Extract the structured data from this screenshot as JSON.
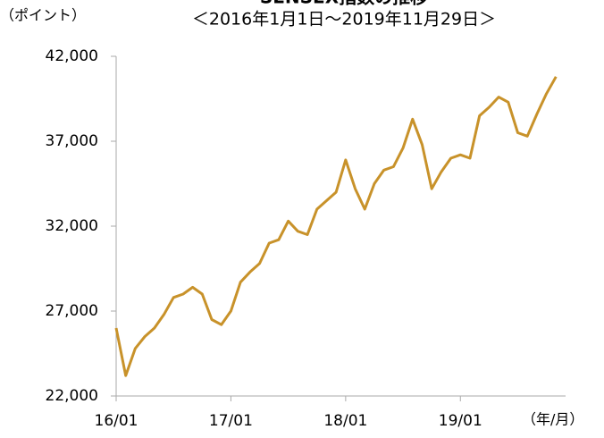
{
  "chart_data": {
    "type": "line",
    "title": "SENSEX指数の推移",
    "subtitle": "＜2016年1月1日～2019年11月29日＞",
    "y_label": "（ポイント）",
    "x_label": "（年/月）",
    "x": [
      "2016-01",
      "2016-02",
      "2016-03",
      "2016-04",
      "2016-05",
      "2016-06",
      "2016-07",
      "2016-08",
      "2016-09",
      "2016-10",
      "2016-11",
      "2016-12",
      "2017-01",
      "2017-02",
      "2017-03",
      "2017-04",
      "2017-05",
      "2017-06",
      "2017-07",
      "2017-08",
      "2017-09",
      "2017-10",
      "2017-11",
      "2017-12",
      "2018-01",
      "2018-02",
      "2018-03",
      "2018-04",
      "2018-05",
      "2018-06",
      "2018-07",
      "2018-08",
      "2018-09",
      "2018-10",
      "2018-11",
      "2018-12",
      "2019-01",
      "2019-02",
      "2019-03",
      "2019-04",
      "2019-05",
      "2019-06",
      "2019-07",
      "2019-08",
      "2019-09",
      "2019-10",
      "2019-11"
    ],
    "series": [
      {
        "name": "SENSEX",
        "color": "#c8922a",
        "values": [
          26000,
          23200,
          24800,
          25500,
          26000,
          26800,
          27800,
          28000,
          28400,
          28000,
          26500,
          26200,
          27000,
          28700,
          29300,
          29800,
          31000,
          31200,
          32300,
          31700,
          31500,
          33000,
          33500,
          34000,
          35900,
          34200,
          33000,
          34500,
          35300,
          35500,
          36600,
          38300,
          36800,
          34200,
          35200,
          36000,
          36200,
          36000,
          38500,
          39000,
          39600,
          39300,
          37500,
          37300,
          38600,
          39800,
          40800
        ]
      }
    ],
    "xlim": [
      "2016-01",
      "2019-12"
    ],
    "xticks": [
      {
        "value": "2016-01",
        "label": "16/01"
      },
      {
        "value": "2017-01",
        "label": "17/01"
      },
      {
        "value": "2018-01",
        "label": "18/01"
      },
      {
        "value": "2019-01",
        "label": "19/01"
      }
    ],
    "ylim": [
      22000,
      42000
    ],
    "yticks": [
      {
        "value": 22000,
        "label": "22,000"
      },
      {
        "value": 27000,
        "label": "27,000"
      },
      {
        "value": 32000,
        "label": "32,000"
      },
      {
        "value": 37000,
        "label": "37,000"
      },
      {
        "value": 42000,
        "label": "42,000"
      }
    ],
    "grid": false
  }
}
